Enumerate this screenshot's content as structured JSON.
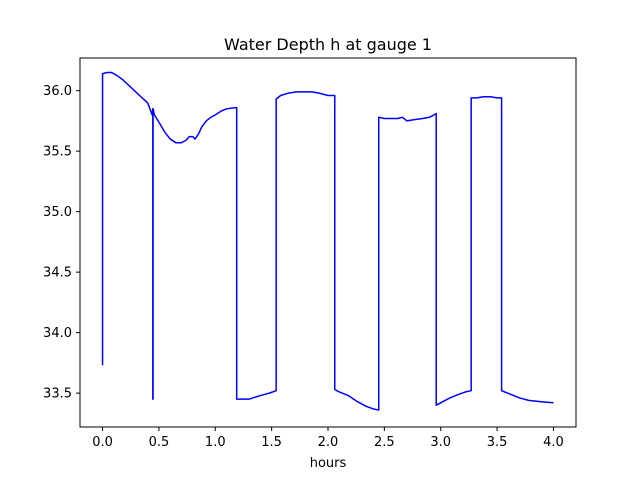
{
  "chart_data": {
    "type": "line",
    "title": "Water Depth h at gauge 1",
    "xlabel": "hours",
    "ylabel": "",
    "xlim": [
      -0.2,
      4.2
    ],
    "ylim": [
      33.22,
      36.27
    ],
    "xticks": [
      0.0,
      0.5,
      1.0,
      1.5,
      2.0,
      2.5,
      3.0,
      3.5,
      4.0
    ],
    "xtick_labels": [
      "0.0",
      "0.5",
      "1.0",
      "1.5",
      "2.0",
      "2.5",
      "3.0",
      "3.5",
      "4.0"
    ],
    "yticks": [
      33.5,
      34.0,
      34.5,
      35.0,
      35.5,
      36.0
    ],
    "ytick_labels": [
      "33.5",
      "34.0",
      "34.5",
      "35.0",
      "35.5",
      "36.0"
    ],
    "grid": false,
    "series": [
      {
        "color": "#0000ff",
        "x": [
          0.0,
          0.0,
          0.04,
          0.08,
          0.12,
          0.18,
          0.26,
          0.34,
          0.4,
          0.44,
          0.446,
          0.446,
          0.448,
          0.448,
          0.46,
          0.5,
          0.55,
          0.6,
          0.65,
          0.7,
          0.74,
          0.77,
          0.8,
          0.82,
          0.85,
          0.88,
          0.92,
          0.96,
          1.0,
          1.05,
          1.1,
          1.18,
          1.19,
          1.19,
          1.3,
          1.4,
          1.48,
          1.54,
          1.54,
          1.58,
          1.65,
          1.72,
          1.8,
          1.86,
          1.92,
          2.0,
          2.06,
          2.06,
          2.1,
          2.18,
          2.26,
          2.34,
          2.4,
          2.45,
          2.45,
          2.5,
          2.56,
          2.62,
          2.66,
          2.7,
          2.76,
          2.84,
          2.9,
          2.94,
          2.96,
          2.96,
          3.0,
          3.08,
          3.16,
          3.22,
          3.27,
          3.27,
          3.32,
          3.38,
          3.44,
          3.5,
          3.54,
          3.54,
          3.62,
          3.7,
          3.78,
          3.88,
          4.0
        ],
        "y": [
          33.73,
          36.14,
          36.15,
          36.15,
          36.13,
          36.09,
          36.02,
          35.95,
          35.9,
          35.8,
          35.85,
          33.45,
          33.45,
          35.85,
          35.8,
          35.74,
          35.66,
          35.6,
          35.57,
          35.57,
          35.59,
          35.62,
          35.62,
          35.6,
          35.64,
          35.7,
          35.75,
          35.78,
          35.8,
          35.83,
          35.85,
          35.86,
          35.86,
          33.45,
          33.45,
          33.48,
          33.5,
          33.52,
          35.93,
          35.96,
          35.98,
          35.99,
          35.99,
          35.99,
          35.98,
          35.96,
          35.96,
          33.53,
          33.51,
          33.48,
          33.43,
          33.39,
          33.37,
          33.36,
          35.78,
          35.77,
          35.77,
          35.77,
          35.78,
          35.75,
          35.76,
          35.77,
          35.78,
          35.8,
          35.81,
          33.4,
          33.42,
          33.46,
          33.49,
          33.51,
          33.52,
          35.94,
          35.94,
          35.95,
          35.95,
          35.94,
          35.94,
          33.52,
          33.49,
          33.46,
          33.44,
          33.43,
          33.42
        ]
      }
    ]
  }
}
